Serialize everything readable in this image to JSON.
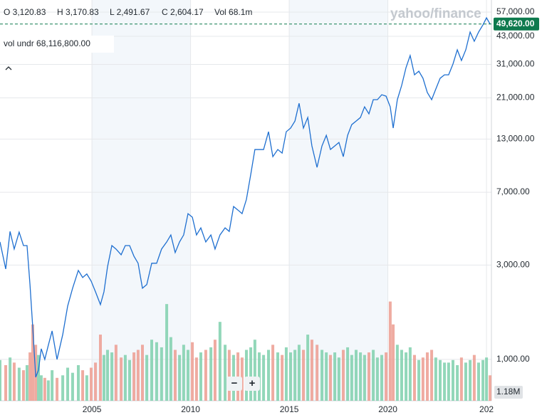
{
  "chart_data": {
    "type": "line",
    "log_scale": true,
    "grid": true,
    "ohlc": [
      "O 3,120.83",
      "H 3,170.83",
      "L 2,491.67",
      "C 2,604.17",
      "Vol 68.1m"
    ],
    "indicator": "vol undr 68,116,800.00",
    "watermark": "yahoo/finance",
    "current_price": 49620,
    "current_price_label": "49,620.00",
    "current_price_color": "#0e7a4e",
    "volume_label": "1.18M",
    "zoom_out": "−",
    "zoom_in": "+",
    "x": [
      2000.34,
      2000.63,
      2000.85,
      2001.06,
      2001.31,
      2001.53,
      2001.71,
      2001.86,
      2002.0,
      2002.15,
      2002.29,
      2002.43,
      2002.61,
      2002.79,
      2002.98,
      2003.23,
      2003.52,
      2003.77,
      2004.02,
      2004.31,
      2004.53,
      2004.74,
      2004.96,
      2005.18,
      2005.43,
      2005.61,
      2005.79,
      2006.01,
      2006.22,
      2006.48,
      2006.69,
      2006.91,
      2007.13,
      2007.34,
      2007.56,
      2007.78,
      2008.03,
      2008.28,
      2008.53,
      2008.79,
      2009.0,
      2009.22,
      2009.44,
      2009.65,
      2009.87,
      2010.09,
      2010.3,
      2010.52,
      2010.77,
      2011.03,
      2011.24,
      2011.49,
      2011.75,
      2011.96,
      2012.18,
      2012.4,
      2012.61,
      2012.83,
      2013.05,
      2013.26,
      2013.48,
      2013.7,
      2013.95,
      2014.17,
      2014.42,
      2014.64,
      2014.85,
      2015.07,
      2015.29,
      2015.5,
      2015.72,
      2015.94,
      2016.15,
      2016.41,
      2016.66,
      2016.88,
      2017.09,
      2017.31,
      2017.52,
      2017.74,
      2017.96,
      2018.17,
      2018.39,
      2018.61,
      2018.82,
      2019.04,
      2019.26,
      2019.47,
      2019.69,
      2019.91,
      2020.12,
      2020.27,
      2020.48,
      2020.7,
      2020.92,
      2021.13,
      2021.35,
      2021.57,
      2021.78,
      2022.0,
      2022.22,
      2022.43,
      2022.65,
      2022.87,
      2023.08,
      2023.3,
      2023.52,
      2023.73,
      2023.95,
      2024.17,
      2024.38,
      2024.6,
      2024.82,
      2025.0,
      2025.18
    ],
    "series": [
      {
        "name": "Price",
        "color": "#1e6fd0",
        "values": [
          3924,
          2864,
          4436,
          3614,
          4400,
          3763,
          3763,
          2389,
          1452,
          813,
          883,
          1132,
          1000,
          1180,
          1393,
          1000,
          1336,
          1861,
          2290,
          2818,
          2594,
          2704,
          2489,
          2198,
          1893,
          2198,
          2937,
          3763,
          3614,
          3381,
          3763,
          3763,
          3325,
          3063,
          2290,
          2389,
          3063,
          3063,
          3614,
          3924,
          4258,
          3468,
          3924,
          4258,
          5457,
          5237,
          4258,
          4624,
          3924,
          4258,
          3614,
          4258,
          4624,
          4436,
          5930,
          5690,
          5457,
          6440,
          8610,
          11510,
          11510,
          11510,
          14160,
          10590,
          11510,
          11040,
          14160,
          14770,
          16030,
          19720,
          14770,
          16710,
          12000,
          9350,
          12000,
          13580,
          11510,
          12000,
          12500,
          10590,
          13580,
          15380,
          16030,
          16710,
          18920,
          17430,
          20560,
          20560,
          21780,
          21420,
          18920,
          14770,
          20560,
          24270,
          29850,
          34370,
          27460,
          28640,
          26380,
          22350,
          20560,
          23270,
          26380,
          27460,
          27460,
          31120,
          36740,
          32440,
          36740,
          45190,
          40570,
          45190,
          49100,
          53310,
          49620
        ]
      },
      {
        "name": "Volume",
        "axis": "y2",
        "up_color": "#7fd0ad",
        "down_color": "#ec9c90",
        "values": [
          1.6,
          1.4,
          1.7,
          1.5,
          1.3,
          1.2,
          1.4,
          1.9,
          3.0,
          2.2,
          1.8,
          1.0,
          0.9,
          0.8,
          1.2,
          0.9,
          1.0,
          1.3,
          1.1,
          1.4,
          1.2,
          1.0,
          1.3,
          1.5,
          2.6,
          1.8,
          2.0,
          1.9,
          2.2,
          1.7,
          1.8,
          1.6,
          1.9,
          2.0,
          2.2,
          1.8,
          2.4,
          2.3,
          2.1,
          3.8,
          2.5,
          2.0,
          1.8,
          2.2,
          2.0,
          2.3,
          1.7,
          1.9,
          2.0,
          2.1,
          2.4,
          3.1,
          2.2,
          2.0,
          1.8,
          1.9,
          1.7,
          2.0,
          2.1,
          2.4,
          1.9,
          1.8,
          2.0,
          2.2,
          1.9,
          1.8,
          2.1,
          1.9,
          2.0,
          2.2,
          2.0,
          2.6,
          2.4,
          2.2,
          2.0,
          1.9,
          1.8,
          1.9,
          1.7,
          2.0,
          2.1,
          1.8,
          2.0,
          1.9,
          1.8,
          1.9,
          2.0,
          1.7,
          1.8,
          1.9,
          3.9,
          3.0,
          2.2,
          2.0,
          1.9,
          2.1,
          1.8,
          1.6,
          1.7,
          1.9,
          2.0,
          1.7,
          1.6,
          1.5,
          1.5,
          1.6,
          1.4,
          1.7,
          1.5,
          1.6,
          1.8,
          1.5,
          1.6,
          1.7,
          1.0
        ]
      }
    ],
    "xlim": [
      2000.34,
      2025.25
    ],
    "xticks": [
      2005,
      2010,
      2015,
      2020,
      {
        "value": 2025,
        "label": "202"
      }
    ],
    "ylim": [
      618,
      65600
    ],
    "yticks": [
      {
        "value": 1000,
        "label": "1,000.00"
      },
      {
        "value": 3000,
        "label": "3,000.00"
      },
      {
        "value": 7000,
        "label": "7,000.00"
      },
      {
        "value": 13000,
        "label": "13,000.00"
      },
      {
        "value": 21000,
        "label": "21,000.00"
      },
      {
        "value": 31000,
        "label": "31,000.00"
      },
      {
        "value": 43000,
        "label": "43,000.00"
      },
      {
        "value": 57000,
        "label": "57,000.00"
      }
    ],
    "y2lim": [
      0,
      4
    ]
  }
}
